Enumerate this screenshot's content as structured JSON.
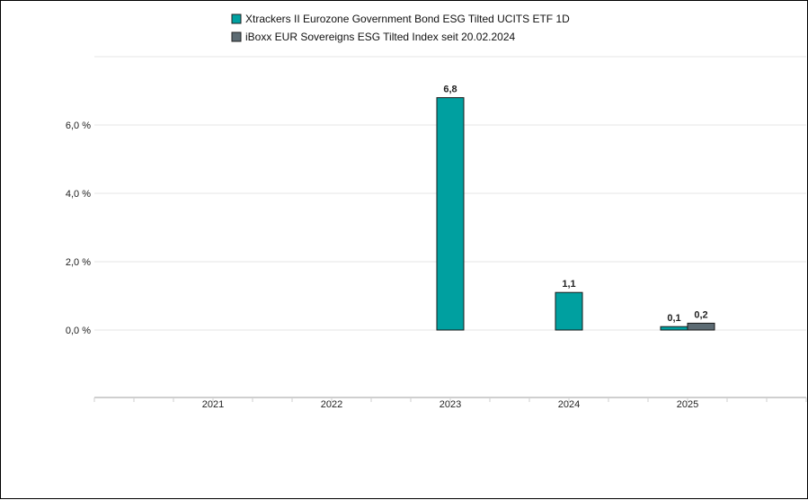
{
  "chart_data": {
    "type": "bar",
    "categories": [
      "2021",
      "2022",
      "2023",
      "2024",
      "2025"
    ],
    "series": [
      {
        "name": "Xtrackers II Eurozone Government Bond ESG Tilted UCITS ETF 1D",
        "color": "#00a0a0",
        "values": [
          null,
          null,
          6.8,
          1.1,
          0.1
        ],
        "labels": [
          "",
          "",
          "6,8",
          "1,1",
          "0,1"
        ]
      },
      {
        "name": "iBoxx EUR Sovereigns ESG Tilted Index seit 20.02.2024",
        "color": "#5c6b73",
        "values": [
          null,
          null,
          null,
          null,
          0.2
        ],
        "labels": [
          "",
          "",
          "",
          "",
          "0,2"
        ]
      }
    ],
    "y_ticks": [
      0,
      2,
      4,
      6
    ],
    "y_tick_labels": [
      "0,0 %",
      "2,0 %",
      "4,0 %",
      "6,0 %"
    ],
    "ylim": [
      -2,
      8
    ],
    "grid": true,
    "legend_position": "top-center"
  }
}
